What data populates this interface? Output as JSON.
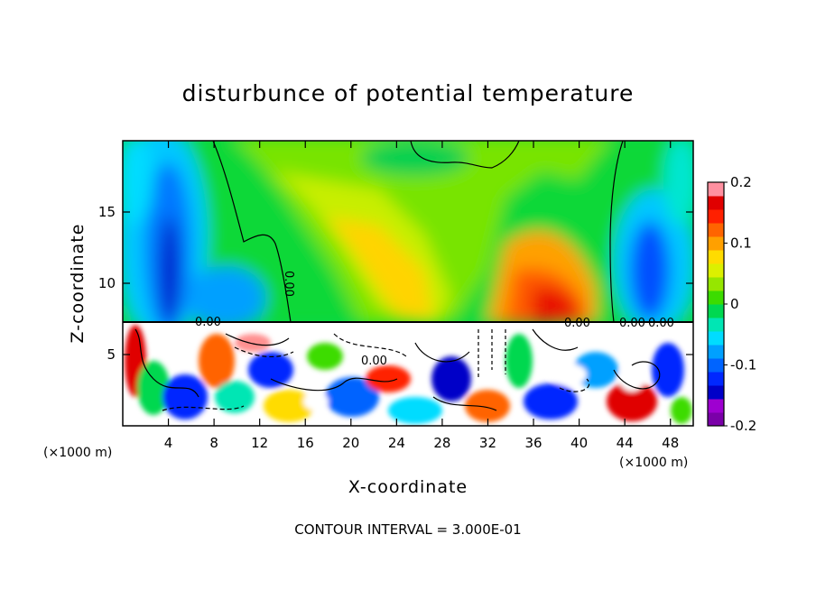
{
  "chart_data": {
    "type": "heatmap",
    "title": "disturbunce of potential temperature",
    "xlabel": "X-coordinate",
    "ylabel": "Z-coordinate",
    "x_unit": "(×1000 m)",
    "x_unit_right": "(×1000 m)",
    "xlim": [
      0,
      50
    ],
    "ylim": [
      0,
      20
    ],
    "x_ticks": [
      "4",
      "8",
      "12",
      "16",
      "20",
      "24",
      "28",
      "32",
      "36",
      "40",
      "44",
      "48"
    ],
    "x_tick_values": [
      4,
      8,
      12,
      16,
      20,
      24,
      28,
      32,
      36,
      40,
      44,
      48
    ],
    "y_ticks": [
      "5",
      "10",
      "15"
    ],
    "y_tick_values": [
      5,
      10,
      15
    ],
    "colorbar": {
      "min": -0.2,
      "max": 0.2,
      "tick_labels": [
        "0.2",
        "0.1",
        "0",
        "-0.1",
        "-0.2"
      ],
      "tick_values": [
        0.2,
        0.1,
        0,
        -0.1,
        -0.2
      ],
      "colors": [
        "#7a00a8",
        "#9e00d0",
        "#0000c8",
        "#0028ff",
        "#0064ff",
        "#00a0ff",
        "#00dcff",
        "#00e6b4",
        "#00d850",
        "#3cdc00",
        "#96e600",
        "#dcf000",
        "#ffdc00",
        "#ffa000",
        "#ff6400",
        "#ff2000",
        "#e00000",
        "#ff90a0"
      ]
    },
    "contour_labels": [
      "0.00",
      "0.00",
      "0.00",
      "0.00",
      "0.00",
      "0.00"
    ],
    "footer": "CONTOUR INTERVAL = 3.000E-01",
    "grid": false,
    "legend": "colorbar-right"
  }
}
